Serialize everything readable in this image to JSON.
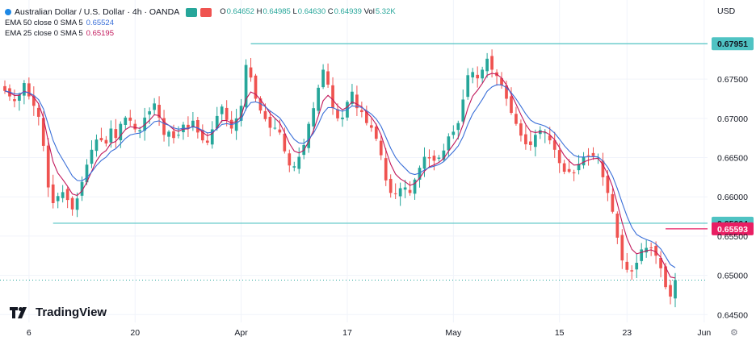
{
  "header": {
    "symbol": "Australian Dollar / U.S. Dollar · 4h · OANDA",
    "ohlc": [
      {
        "k": "O",
        "v": "0.64652"
      },
      {
        "k": "H",
        "v": "0.64985"
      },
      {
        "k": "L",
        "v": "0.64630"
      },
      {
        "k": "C",
        "v": "0.64939"
      },
      {
        "k": "Vol",
        "v": "5.32K"
      }
    ],
    "indicators": [
      {
        "label": "EMA 50 close 0 SMA 5",
        "value": "0.65524",
        "color": "#3a6fd8"
      },
      {
        "label": "EMA 25 close 0 SMA 5",
        "value": "0.65195",
        "color": "#c2185b"
      }
    ]
  },
  "currency": "USD",
  "brand": "TradingView",
  "colors": {
    "up": "#26a69a",
    "down": "#ef5350",
    "ema50": "#3a6fd8",
    "ema25": "#c2185b",
    "level": "#4fc3c3",
    "price_line": "#26a69a",
    "grid": "#f0f3fa"
  },
  "chart_data": {
    "type": "candlestick",
    "timeframe": "4h",
    "y_range": [
      0.644,
      0.682
    ],
    "y_ticks": [
      "0.64500",
      "0.65000",
      "0.65500",
      "0.66000",
      "0.66500",
      "0.67000",
      "0.67500"
    ],
    "x_ticks": [
      {
        "label": "6",
        "bar": 5
      },
      {
        "label": "20",
        "bar": 27
      },
      {
        "label": "Apr",
        "bar": 49
      },
      {
        "label": "17",
        "bar": 71
      },
      {
        "label": "May",
        "bar": 93
      },
      {
        "label": "15",
        "bar": 115
      },
      {
        "label": "23",
        "bar": 129
      },
      {
        "label": "Jun",
        "bar": 145
      }
    ],
    "levels": [
      {
        "value": 0.67951,
        "label": "0.67951",
        "from_bar": 51
      },
      {
        "value": 0.65664,
        "label": "0.65664",
        "from_bar": 10
      },
      {
        "value": 0.65593,
        "label": "0.65593",
        "color": "#e91e63",
        "from_bar": 137
      }
    ],
    "last_price": 0.64939,
    "ema50_label": "EMA 50",
    "ema25_label": "EMA 25",
    "closes": [
      0.6735,
      0.6728,
      0.6722,
      0.673,
      0.6745,
      0.6728,
      0.6716,
      0.6702,
      0.6665,
      0.6612,
      0.6592,
      0.6601,
      0.6606,
      0.6596,
      0.6584,
      0.6598,
      0.6619,
      0.6641,
      0.666,
      0.6673,
      0.6672,
      0.6668,
      0.6687,
      0.6675,
      0.6693,
      0.6701,
      0.6697,
      0.6686,
      0.6685,
      0.6701,
      0.6709,
      0.6719,
      0.6701,
      0.6679,
      0.6683,
      0.6675,
      0.6679,
      0.6692,
      0.6687,
      0.6697,
      0.6682,
      0.6672,
      0.6669,
      0.6686,
      0.6703,
      0.6715,
      0.6698,
      0.6687,
      0.67,
      0.6716,
      0.6768,
      0.6752,
      0.6725,
      0.671,
      0.6699,
      0.6688,
      0.6688,
      0.6682,
      0.6658,
      0.664,
      0.6639,
      0.6651,
      0.6666,
      0.6693,
      0.6713,
      0.6739,
      0.6762,
      0.6743,
      0.6713,
      0.67,
      0.6701,
      0.6721,
      0.6734,
      0.6713,
      0.6708,
      0.6694,
      0.6688,
      0.6674,
      0.6653,
      0.6621,
      0.6605,
      0.6604,
      0.6611,
      0.6612,
      0.6605,
      0.6622,
      0.6637,
      0.6651,
      0.6649,
      0.6646,
      0.665,
      0.6659,
      0.6677,
      0.6683,
      0.6694,
      0.6724,
      0.6755,
      0.6759,
      0.6751,
      0.6762,
      0.6776,
      0.6762,
      0.6754,
      0.6742,
      0.6725,
      0.6707,
      0.6693,
      0.6678,
      0.6667,
      0.6666,
      0.6679,
      0.6685,
      0.6682,
      0.6672,
      0.666,
      0.6643,
      0.6632,
      0.6632,
      0.663,
      0.6642,
      0.6651,
      0.6652,
      0.6652,
      0.665,
      0.6625,
      0.6605,
      0.6581,
      0.6548,
      0.6519,
      0.6507,
      0.6505,
      0.6516,
      0.6533,
      0.6535,
      0.6535,
      0.6525,
      0.6509,
      0.6485,
      0.6473,
      0.6494
    ]
  }
}
